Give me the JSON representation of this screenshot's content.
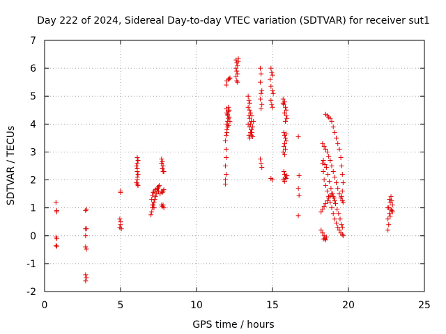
{
  "chart_data": {
    "type": "scatter",
    "title": "Day 222 of 2024, Sidereal Day-to-day VTEC variation (SDTVAR) for receiver sut1",
    "xlabel": "GPS time / hours",
    "ylabel": "SDTVAR / TECUs",
    "xlim": [
      0,
      25
    ],
    "ylim": [
      -2,
      7
    ],
    "xticks": [
      0,
      5,
      10,
      15,
      20,
      25
    ],
    "yticks": [
      -2,
      -1,
      0,
      1,
      2,
      3,
      4,
      5,
      6,
      7
    ],
    "grid": true,
    "marker": "+",
    "marker_color": "#e00000",
    "series": [
      {
        "name": "sut1",
        "points": [
          [
            0.75,
            1.2
          ],
          [
            0.8,
            0.9
          ],
          [
            0.8,
            0.85
          ],
          [
            0.75,
            -0.05
          ],
          [
            0.8,
            -0.1
          ],
          [
            0.75,
            -0.35
          ],
          [
            0.8,
            -0.38
          ],
          [
            2.7,
            0.9
          ],
          [
            2.75,
            0.95
          ],
          [
            2.7,
            0.25
          ],
          [
            2.75,
            0.25
          ],
          [
            2.7,
            0.0
          ],
          [
            2.7,
            -0.4
          ],
          [
            2.75,
            -0.48
          ],
          [
            2.7,
            -1.4
          ],
          [
            2.75,
            -1.5
          ],
          [
            2.7,
            -1.62
          ],
          [
            5.0,
            1.6
          ],
          [
            5.0,
            1.55
          ],
          [
            4.95,
            0.6
          ],
          [
            5.0,
            0.5
          ],
          [
            5.0,
            0.4
          ],
          [
            4.95,
            0.3
          ],
          [
            5.05,
            0.25
          ],
          [
            6.1,
            2.8
          ],
          [
            6.15,
            2.7
          ],
          [
            6.1,
            2.6
          ],
          [
            6.05,
            2.5
          ],
          [
            6.1,
            2.4
          ],
          [
            6.1,
            2.3
          ],
          [
            6.15,
            2.2
          ],
          [
            6.1,
            2.1
          ],
          [
            6.1,
            2.0
          ],
          [
            6.05,
            1.9
          ],
          [
            6.1,
            1.85
          ],
          [
            6.15,
            1.8
          ],
          [
            7.0,
            0.75
          ],
          [
            7.05,
            0.85
          ],
          [
            7.1,
            1.0
          ],
          [
            7.15,
            1.1
          ],
          [
            7.2,
            1.2
          ],
          [
            7.25,
            1.3
          ],
          [
            7.3,
            1.4
          ],
          [
            7.35,
            1.5
          ],
          [
            7.4,
            1.6
          ],
          [
            7.45,
            1.7
          ],
          [
            7.5,
            1.75
          ],
          [
            7.55,
            1.8
          ],
          [
            7.05,
            1.3
          ],
          [
            7.1,
            1.45
          ],
          [
            7.15,
            1.55
          ],
          [
            7.2,
            1.6
          ],
          [
            7.3,
            1.65
          ],
          [
            7.4,
            1.7
          ],
          [
            7.5,
            1.6
          ],
          [
            7.6,
            1.5
          ],
          [
            7.1,
            1.1
          ],
          [
            7.2,
            1.0
          ],
          [
            7.7,
            2.75
          ],
          [
            7.75,
            2.65
          ],
          [
            7.7,
            2.6
          ],
          [
            7.8,
            2.5
          ],
          [
            7.75,
            2.4
          ],
          [
            7.8,
            2.3
          ],
          [
            7.85,
            2.3
          ],
          [
            7.7,
            1.6
          ],
          [
            7.75,
            1.55
          ],
          [
            7.8,
            1.6
          ],
          [
            7.85,
            1.65
          ],
          [
            7.7,
            1.1
          ],
          [
            7.75,
            1.05
          ],
          [
            7.8,
            1.1
          ],
          [
            7.85,
            1.0
          ],
          [
            11.9,
            1.85
          ],
          [
            11.9,
            2.0
          ],
          [
            11.95,
            2.2
          ],
          [
            11.9,
            2.5
          ],
          [
            11.95,
            2.8
          ],
          [
            11.95,
            3.1
          ],
          [
            11.9,
            3.4
          ],
          [
            11.95,
            3.6
          ],
          [
            12.0,
            3.7
          ],
          [
            12.0,
            3.8
          ],
          [
            12.05,
            3.9
          ],
          [
            12.0,
            4.0
          ],
          [
            12.05,
            4.1
          ],
          [
            12.1,
            4.2
          ],
          [
            12.05,
            4.3
          ],
          [
            12.0,
            4.4
          ],
          [
            12.1,
            4.45
          ],
          [
            12.15,
            4.5
          ],
          [
            12.1,
            4.6
          ],
          [
            11.95,
            4.55
          ],
          [
            12.05,
            4.35
          ],
          [
            12.15,
            4.25
          ],
          [
            12.2,
            4.1
          ],
          [
            12.1,
            3.95
          ],
          [
            11.95,
            5.4
          ],
          [
            12.0,
            5.55
          ],
          [
            12.1,
            5.6
          ],
          [
            12.2,
            5.65
          ],
          [
            12.15,
            5.62
          ],
          [
            12.6,
            6.3
          ],
          [
            12.65,
            6.2
          ],
          [
            12.7,
            6.1
          ],
          [
            12.6,
            6.0
          ],
          [
            12.65,
            5.9
          ],
          [
            12.7,
            5.8
          ],
          [
            12.6,
            5.7
          ],
          [
            12.65,
            5.55
          ],
          [
            12.7,
            5.5
          ],
          [
            12.75,
            6.35
          ],
          [
            12.75,
            6.25
          ],
          [
            13.4,
            5.0
          ],
          [
            13.45,
            4.85
          ],
          [
            13.5,
            4.75
          ],
          [
            13.4,
            4.6
          ],
          [
            13.5,
            4.5
          ],
          [
            13.55,
            4.4
          ],
          [
            13.45,
            4.3
          ],
          [
            13.5,
            4.2
          ],
          [
            13.6,
            4.1
          ],
          [
            13.55,
            4.0
          ],
          [
            13.5,
            3.9
          ],
          [
            13.6,
            3.8
          ],
          [
            13.55,
            3.7
          ],
          [
            13.6,
            3.6
          ],
          [
            13.5,
            3.5
          ],
          [
            13.7,
            3.55
          ],
          [
            13.65,
            3.7
          ],
          [
            13.7,
            3.9
          ],
          [
            13.75,
            4.1
          ],
          [
            13.65,
            4.3
          ],
          [
            13.4,
            4.0
          ],
          [
            13.45,
            3.6
          ],
          [
            14.2,
            6.0
          ],
          [
            14.25,
            5.8
          ],
          [
            14.2,
            5.5
          ],
          [
            14.3,
            5.2
          ],
          [
            14.25,
            5.1
          ],
          [
            14.2,
            4.9
          ],
          [
            14.3,
            4.7
          ],
          [
            14.25,
            4.55
          ],
          [
            14.2,
            2.75
          ],
          [
            14.25,
            2.6
          ],
          [
            14.3,
            2.45
          ],
          [
            14.9,
            6.0
          ],
          [
            14.95,
            5.85
          ],
          [
            15.0,
            5.75
          ],
          [
            14.85,
            5.6
          ],
          [
            14.9,
            5.35
          ],
          [
            15.0,
            5.2
          ],
          [
            15.05,
            5.1
          ],
          [
            14.9,
            4.85
          ],
          [
            14.95,
            4.7
          ],
          [
            15.0,
            4.6
          ],
          [
            14.9,
            2.05
          ],
          [
            15.0,
            2.0
          ],
          [
            15.7,
            4.9
          ],
          [
            15.8,
            4.8
          ],
          [
            15.75,
            4.7
          ],
          [
            15.85,
            4.6
          ],
          [
            15.9,
            4.5
          ],
          [
            15.8,
            4.4
          ],
          [
            15.9,
            4.3
          ],
          [
            15.95,
            4.2
          ],
          [
            15.85,
            4.1
          ],
          [
            15.7,
            4.75
          ],
          [
            15.75,
            3.7
          ],
          [
            15.8,
            3.6
          ],
          [
            15.85,
            3.5
          ],
          [
            15.9,
            3.4
          ],
          [
            15.8,
            3.3
          ],
          [
            15.75,
            3.2
          ],
          [
            15.85,
            3.1
          ],
          [
            15.7,
            3.0
          ],
          [
            15.8,
            2.9
          ],
          [
            15.9,
            3.65
          ],
          [
            15.75,
            2.3
          ],
          [
            15.8,
            2.2
          ],
          [
            15.85,
            2.1
          ],
          [
            15.7,
            2.0
          ],
          [
            15.8,
            1.95
          ],
          [
            15.9,
            2.05
          ],
          [
            15.95,
            2.15
          ],
          [
            16.7,
            3.55
          ],
          [
            16.75,
            2.15
          ],
          [
            16.7,
            1.7
          ],
          [
            16.75,
            1.45
          ],
          [
            16.7,
            0.72
          ],
          [
            18.3,
            3.3
          ],
          [
            18.4,
            3.2
          ],
          [
            18.5,
            3.1
          ],
          [
            18.6,
            3.0
          ],
          [
            18.7,
            2.85
          ],
          [
            18.8,
            2.7
          ],
          [
            18.9,
            2.5
          ],
          [
            19.0,
            2.3
          ],
          [
            19.1,
            2.1
          ],
          [
            19.2,
            1.9
          ],
          [
            19.3,
            1.7
          ],
          [
            19.4,
            1.5
          ],
          [
            19.5,
            1.35
          ],
          [
            19.6,
            1.25
          ],
          [
            19.65,
            1.2
          ],
          [
            18.3,
            2.6
          ],
          [
            18.35,
            2.3
          ],
          [
            18.4,
            2.0
          ],
          [
            18.5,
            1.8
          ],
          [
            18.6,
            1.6
          ],
          [
            18.7,
            1.4
          ],
          [
            18.8,
            1.2
          ],
          [
            18.9,
            1.0
          ],
          [
            19.0,
            0.8
          ],
          [
            19.1,
            0.6
          ],
          [
            19.2,
            0.45
          ],
          [
            19.3,
            0.3
          ],
          [
            19.4,
            0.2
          ],
          [
            19.5,
            0.1
          ],
          [
            19.6,
            0.05
          ],
          [
            19.65,
            0.0
          ],
          [
            18.35,
            2.7
          ],
          [
            18.45,
            2.55
          ],
          [
            18.55,
            2.45
          ],
          [
            18.65,
            2.2
          ],
          [
            18.75,
            1.95
          ],
          [
            18.85,
            1.7
          ],
          [
            18.95,
            1.5
          ],
          [
            19.05,
            1.35
          ],
          [
            19.15,
            1.15
          ],
          [
            19.25,
            0.95
          ],
          [
            19.35,
            0.8
          ],
          [
            19.45,
            0.6
          ],
          [
            19.55,
            0.4
          ],
          [
            19.6,
            0.3
          ],
          [
            18.2,
            0.85
          ],
          [
            18.3,
            0.95
          ],
          [
            18.4,
            1.05
          ],
          [
            18.5,
            1.15
          ],
          [
            18.6,
            1.25
          ],
          [
            18.7,
            1.35
          ],
          [
            18.8,
            1.45
          ],
          [
            18.9,
            1.5
          ],
          [
            19.0,
            1.4
          ],
          [
            19.1,
            1.25
          ],
          [
            18.2,
            0.2
          ],
          [
            18.3,
            0.1
          ],
          [
            18.4,
            0.0
          ],
          [
            18.45,
            -0.1
          ],
          [
            18.5,
            -0.15
          ],
          [
            18.55,
            -0.05
          ],
          [
            18.35,
            -0.12
          ],
          [
            18.5,
            4.35
          ],
          [
            18.6,
            4.3
          ],
          [
            18.7,
            4.25
          ],
          [
            18.8,
            4.2
          ],
          [
            18.9,
            4.1
          ],
          [
            19.0,
            3.9
          ],
          [
            19.1,
            3.7
          ],
          [
            19.2,
            3.5
          ],
          [
            19.3,
            3.3
          ],
          [
            19.4,
            3.1
          ],
          [
            19.5,
            2.8
          ],
          [
            19.55,
            2.5
          ],
          [
            19.6,
            2.2
          ],
          [
            19.65,
            1.9
          ],
          [
            19.6,
            1.6
          ],
          [
            19.55,
            1.4
          ],
          [
            22.6,
            0.2
          ],
          [
            22.65,
            0.4
          ],
          [
            22.6,
            0.6
          ],
          [
            22.7,
            0.8
          ],
          [
            22.65,
            1.0
          ],
          [
            22.75,
            1.2
          ],
          [
            22.7,
            1.3
          ],
          [
            22.8,
            1.4
          ],
          [
            22.85,
            1.25
          ],
          [
            22.9,
            1.1
          ],
          [
            22.8,
            0.95
          ],
          [
            22.9,
            0.85
          ],
          [
            22.75,
            0.7
          ],
          [
            22.85,
            0.9
          ],
          [
            22.6,
            1.0
          ]
        ]
      }
    ]
  }
}
